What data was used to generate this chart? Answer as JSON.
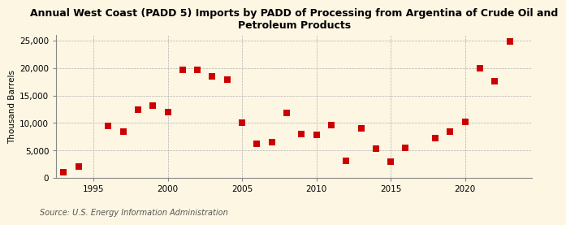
{
  "title": "Annual West Coast (PADD 5) Imports by PADD of Processing from Argentina of Crude Oil and\nPetroleum Products",
  "ylabel": "Thousand Barrels",
  "source": "Source: U.S. Energy Information Administration",
  "background_color": "#fdf6e3",
  "plot_background_color": "#fdf6e3",
  "marker_color": "#cc0000",
  "marker_size": 28,
  "years": [
    1993,
    1994,
    1996,
    1997,
    1998,
    1999,
    2000,
    2001,
    2002,
    2003,
    2004,
    2005,
    2006,
    2007,
    2008,
    2009,
    2010,
    2011,
    2012,
    2013,
    2014,
    2015,
    2016,
    2018,
    2019,
    2020,
    2021,
    2022,
    2023
  ],
  "values": [
    1000,
    2100,
    9500,
    8500,
    12400,
    13100,
    12000,
    19700,
    19600,
    18500,
    17900,
    10000,
    6200,
    6500,
    11900,
    8000,
    7800,
    9700,
    3100,
    9000,
    5300,
    3000,
    5500,
    7200,
    8500,
    10200,
    19900,
    17600,
    24900
  ],
  "ylim": [
    0,
    26000
  ],
  "xlim": [
    1992.5,
    2024.5
  ],
  "yticks": [
    0,
    5000,
    10000,
    15000,
    20000,
    25000
  ],
  "xticks": [
    1995,
    2000,
    2005,
    2010,
    2015,
    2020
  ],
  "title_fontsize": 9,
  "label_fontsize": 7.5,
  "tick_fontsize": 7.5,
  "source_fontsize": 7
}
